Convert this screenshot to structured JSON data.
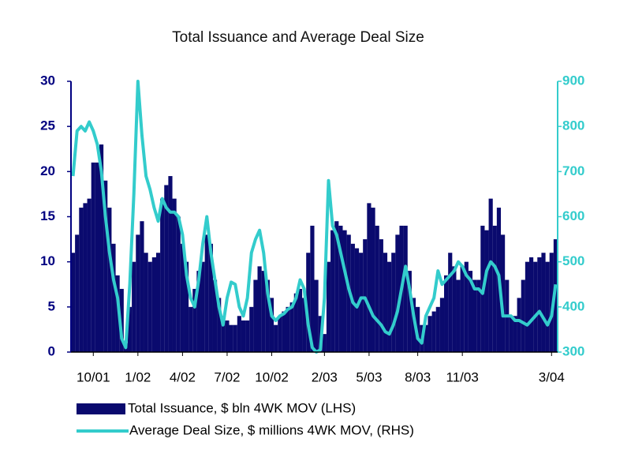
{
  "chart_data": {
    "type": "bar",
    "title": "Total Issuance and Average Deal Size",
    "categories": [
      null,
      null,
      null,
      null,
      null,
      "10/01",
      null,
      null,
      null,
      null,
      null,
      null,
      null,
      null,
      null,
      null,
      "1/02",
      null,
      null,
      null,
      null,
      null,
      null,
      null,
      null,
      null,
      null,
      "4/02",
      null,
      null,
      null,
      null,
      null,
      null,
      null,
      null,
      null,
      null,
      "7/02",
      null,
      null,
      null,
      null,
      null,
      null,
      null,
      null,
      null,
      null,
      "10/02",
      null,
      null,
      null,
      null,
      null,
      null,
      null,
      null,
      null,
      null,
      null,
      null,
      "2/03",
      null,
      null,
      null,
      null,
      null,
      null,
      null,
      null,
      null,
      null,
      "5/03",
      null,
      null,
      null,
      null,
      null,
      null,
      null,
      null,
      null,
      null,
      null,
      "8/03",
      null,
      null,
      null,
      null,
      null,
      null,
      null,
      null,
      null,
      null,
      "11/03",
      null,
      null,
      null,
      null,
      null,
      null,
      null,
      null,
      null,
      null,
      null,
      null,
      null,
      null,
      null,
      null,
      null,
      null,
      null,
      null,
      null,
      "3/04",
      null
    ],
    "series": [
      {
        "name": "Total Issuance, $ bln 4WK MOV (LHS)",
        "type": "bar",
        "color": "#0a0a6e",
        "values": [
          11,
          13,
          16,
          16.5,
          17,
          21,
          21,
          23,
          19,
          16,
          12,
          8.5,
          7,
          1,
          5,
          10,
          13,
          14.5,
          11,
          10,
          10.5,
          11,
          17,
          18.5,
          19.5,
          17,
          15,
          12,
          10,
          5,
          7,
          9,
          10,
          13,
          12,
          8,
          6,
          4,
          3.5,
          3,
          3,
          4,
          3.5,
          3.5,
          5,
          8,
          9.5,
          9,
          8,
          6,
          3,
          4,
          4.5,
          5,
          5.5,
          6.5,
          7,
          6,
          11,
          14,
          8,
          4,
          2,
          10,
          13.5,
          14.5,
          14,
          13.5,
          13,
          12,
          11.5,
          11,
          12.5,
          16.5,
          16,
          14,
          12.5,
          11,
          10,
          11,
          13,
          14,
          14,
          9,
          6,
          5,
          3,
          3,
          4,
          4.5,
          5,
          6,
          8.5,
          11,
          9.5,
          8,
          9.5,
          10,
          9,
          8,
          8,
          14,
          13.5,
          17,
          14,
          16,
          13,
          8,
          4,
          4,
          6,
          8,
          10,
          10.5,
          10,
          10.5,
          11,
          10,
          11,
          12.5
        ]
      },
      {
        "name": "Average Deal Size, $ millions 4WK MOV, (RHS)",
        "type": "line",
        "axis": "y2",
        "color": "#33cccc",
        "values": [
          690,
          790,
          800,
          790,
          810,
          790,
          760,
          700,
          600,
          520,
          460,
          420,
          330,
          310,
          450,
          650,
          900,
          780,
          690,
          660,
          620,
          590,
          640,
          620,
          610,
          610,
          600,
          560,
          470,
          420,
          400,
          460,
          540,
          600,
          520,
          460,
          400,
          360,
          420,
          455,
          450,
          400,
          380,
          420,
          520,
          550,
          570,
          520,
          430,
          380,
          370,
          380,
          385,
          395,
          400,
          420,
          460,
          440,
          360,
          310,
          300,
          305,
          420,
          680,
          580,
          560,
          520,
          480,
          440,
          410,
          400,
          420,
          420,
          400,
          380,
          370,
          360,
          345,
          340,
          360,
          390,
          440,
          490,
          440,
          380,
          330,
          320,
          380,
          400,
          420,
          480,
          450,
          460,
          470,
          480,
          500,
          490,
          470,
          460,
          440,
          440,
          430,
          480,
          500,
          490,
          470,
          380,
          380,
          380,
          370,
          370,
          365,
          360,
          370,
          380,
          390,
          375,
          360,
          380,
          450
        ]
      }
    ],
    "ylim": [
      0,
      30
    ],
    "yticks": [
      0,
      5,
      10,
      15,
      20,
      25,
      30
    ],
    "y2lim": [
      300,
      900
    ],
    "y2ticks": [
      300,
      400,
      500,
      600,
      700,
      800,
      900
    ],
    "grid": false
  }
}
